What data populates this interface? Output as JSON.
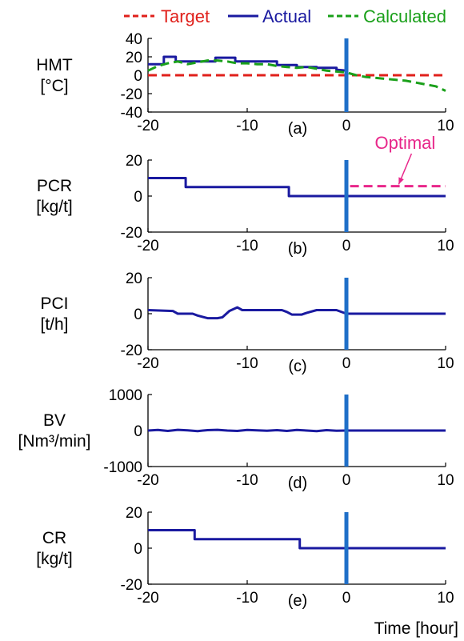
{
  "legend": [
    {
      "label": "Target",
      "color": "#e0201b",
      "dash": "dashed"
    },
    {
      "label": "Actual",
      "color": "#1a1aa0",
      "dash": "solid"
    },
    {
      "label": "Calculated",
      "color": "#1aa01a",
      "dash": "dashed"
    }
  ],
  "xlabel": "Time [hour]",
  "current_time_marker": {
    "x": 0,
    "color": "#1f6fc8"
  },
  "chart_data": [
    {
      "type": "line",
      "panel_label": "(a)",
      "ylabel_lines": [
        "HMT",
        "[°C]"
      ],
      "xlim": [
        -20,
        10
      ],
      "ylim": [
        -40,
        40
      ],
      "xticks": [
        "-20",
        "-10",
        "0",
        "10"
      ],
      "yticks": [
        "40",
        "20",
        "0",
        "-20",
        "-40"
      ],
      "ytick_values": [
        40,
        20,
        0,
        -20,
        -40
      ],
      "series": [
        {
          "name": "Target",
          "color": "#e0201b",
          "dash": "dashed",
          "x": [
            -20,
            10
          ],
          "y": [
            0,
            0
          ]
        },
        {
          "name": "Actual",
          "color": "#1a1aa0",
          "dash": "solid",
          "x": [
            -20,
            -18.4,
            -18.4,
            -17.2,
            -17.2,
            -13.2,
            -13.2,
            -11.2,
            -11.2,
            -7,
            -7,
            -5,
            -5,
            -3,
            -3,
            -1,
            -1,
            0
          ],
          "y": [
            12,
            12,
            20,
            20,
            15,
            15,
            19,
            19,
            15,
            15,
            11,
            11,
            9,
            9,
            8,
            8,
            6,
            5
          ]
        },
        {
          "name": "Calculated",
          "color": "#1aa01a",
          "dash": "dashed",
          "x": [
            -20,
            -19,
            -18,
            -17,
            -16,
            -15,
            -14,
            -13,
            -12,
            -11,
            -10,
            -9,
            -8,
            -7,
            -6,
            -5,
            -4,
            -3,
            -2,
            -1,
            0,
            1,
            2,
            3,
            4,
            5,
            6,
            7,
            8,
            9,
            10
          ],
          "y": [
            5,
            10,
            13,
            15,
            12,
            14,
            16,
            16,
            15,
            13,
            13,
            12,
            12,
            10,
            9,
            8,
            9,
            7,
            5,
            4,
            3,
            0,
            -2,
            -3,
            -4,
            -5,
            -6,
            -8,
            -10,
            -12,
            -17
          ]
        }
      ]
    },
    {
      "type": "line",
      "panel_label": "(b)",
      "ylabel_lines": [
        "PCR",
        "[kg/t]"
      ],
      "xlim": [
        -20,
        10
      ],
      "ylim": [
        -20,
        20
      ],
      "xticks": [
        "-20",
        "-10",
        "0",
        "10"
      ],
      "yticks": [
        "20",
        "0",
        "-20"
      ],
      "ytick_values": [
        20,
        0,
        -20
      ],
      "annotation": {
        "text": "Optimal",
        "color": "#e8268a",
        "x": 3.5,
        "y": 18
      },
      "series": [
        {
          "name": "Actual",
          "color": "#1a1aa0",
          "dash": "solid",
          "x": [
            -20,
            -16.2,
            -16.2,
            -5.8,
            -5.8,
            10
          ],
          "y": [
            10,
            10,
            5,
            5,
            0,
            0
          ]
        },
        {
          "name": "Optimal",
          "color": "#e8268a",
          "dash": "dashed",
          "x": [
            0,
            0,
            10
          ],
          "y": [
            0,
            5.5,
            5.5
          ]
        }
      ]
    },
    {
      "type": "line",
      "panel_label": "(c)",
      "ylabel_lines": [
        "PCI",
        "[t/h]"
      ],
      "xlim": [
        -20,
        10
      ],
      "ylim": [
        -20,
        20
      ],
      "xticks": [
        "-20",
        "-10",
        "0",
        "10"
      ],
      "yticks": [
        "20",
        "0",
        "-20"
      ],
      "ytick_values": [
        20,
        0,
        -20
      ],
      "series": [
        {
          "name": "Actual",
          "color": "#1a1aa0",
          "dash": "solid",
          "x": [
            -20,
            -17.5,
            -17,
            -15.5,
            -15,
            -14,
            -13,
            -12.5,
            -11.8,
            -11,
            -10.5,
            -6.5,
            -6,
            -5.5,
            -4.5,
            -4,
            -3,
            -1,
            0,
            10
          ],
          "y": [
            2,
            1.5,
            0,
            0,
            -1,
            -2.5,
            -2.5,
            -2,
            1.5,
            3.5,
            2,
            2,
            1,
            -0.5,
            -0.5,
            0.5,
            2,
            2,
            0,
            0
          ]
        }
      ]
    },
    {
      "type": "line",
      "panel_label": "(d)",
      "ylabel_lines": [
        "BV",
        "[Nm³/min]"
      ],
      "xlim": [
        -20,
        10
      ],
      "ylim": [
        -1000,
        1000
      ],
      "xticks": [
        "-20",
        "-10",
        "0",
        "10"
      ],
      "yticks": [
        "1000",
        "0",
        "-1000"
      ],
      "ytick_values": [
        1000,
        0,
        -1000
      ],
      "series": [
        {
          "name": "Actual",
          "color": "#1a1aa0",
          "dash": "solid",
          "x": [
            -20,
            -19,
            -18,
            -17,
            -16,
            -15,
            -14,
            -13,
            -12,
            -11,
            -10,
            -9,
            -8,
            -7,
            -6,
            -5,
            -4,
            -3,
            -2,
            -1,
            0,
            10
          ],
          "y": [
            0,
            15,
            -10,
            20,
            5,
            -15,
            10,
            20,
            0,
            -10,
            15,
            5,
            -5,
            10,
            -10,
            15,
            0,
            -15,
            10,
            -5,
            0,
            0
          ]
        }
      ]
    },
    {
      "type": "line",
      "panel_label": "(e)",
      "ylabel_lines": [
        "CR",
        "[kg/t]"
      ],
      "xlim": [
        -20,
        10
      ],
      "ylim": [
        -20,
        20
      ],
      "xticks": [
        "-20",
        "-10",
        "0",
        "10"
      ],
      "yticks": [
        "20",
        "0",
        "-20"
      ],
      "ytick_values": [
        20,
        0,
        -20
      ],
      "series": [
        {
          "name": "Actual",
          "color": "#1a1aa0",
          "dash": "solid",
          "x": [
            -20,
            -15.3,
            -15.3,
            -4.7,
            -4.7,
            10
          ],
          "y": [
            10,
            10,
            5,
            5,
            0,
            0
          ]
        }
      ]
    }
  ]
}
